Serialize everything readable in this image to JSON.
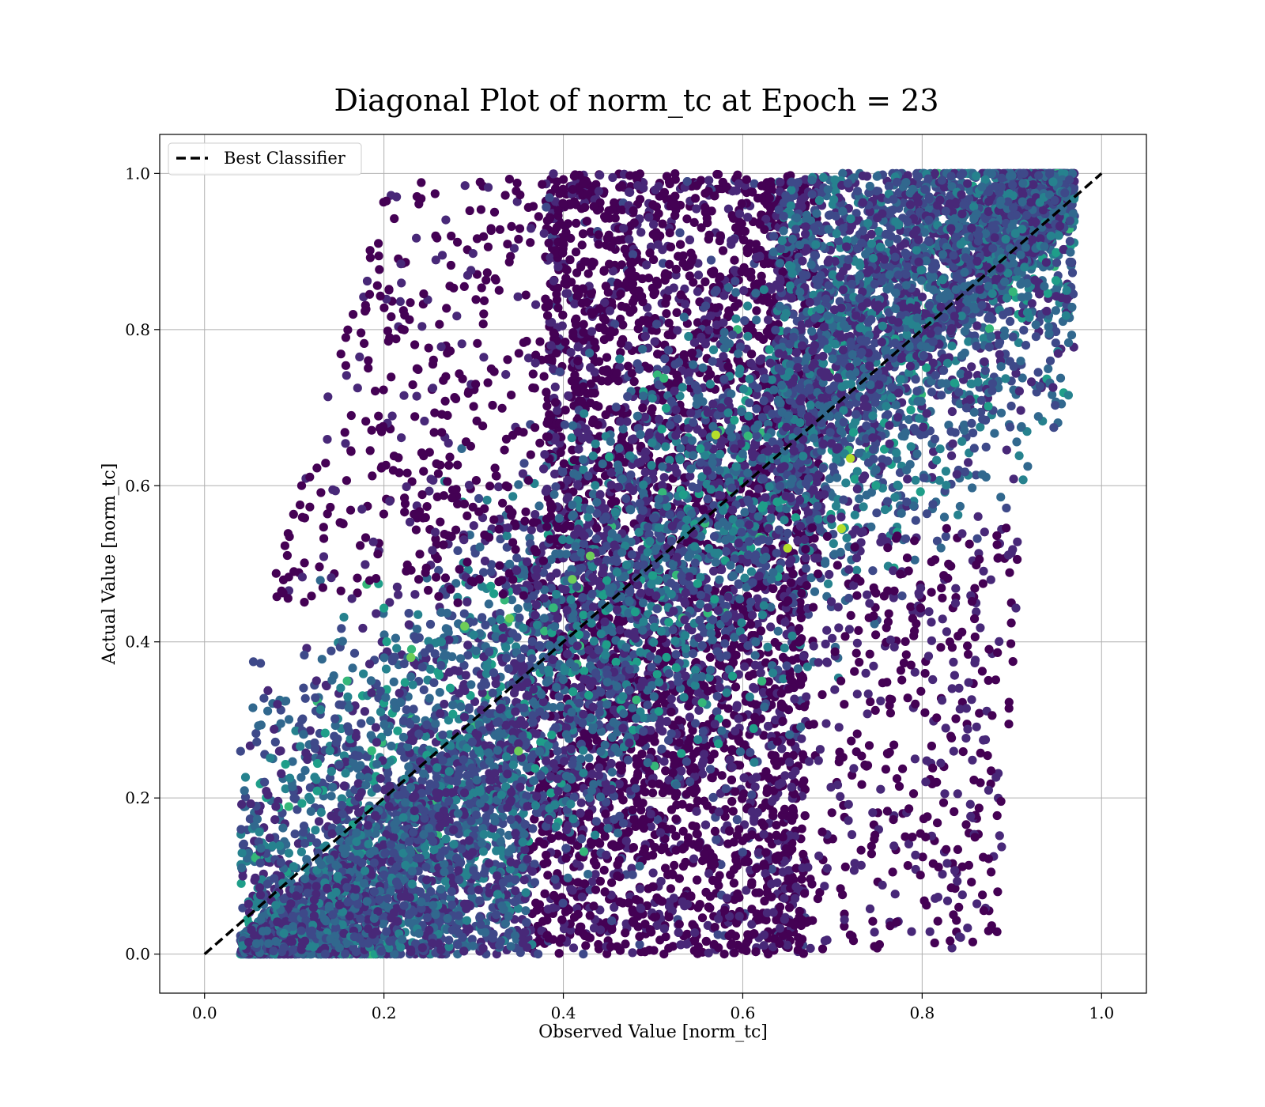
{
  "chart_data": {
    "type": "scatter",
    "title": "Diagonal Plot of norm_tc at Epoch = 23",
    "xlabel": "Observed Value [norm_tc]",
    "ylabel": "Actual Value [norm_tc]",
    "xlim": [
      -0.05,
      1.05
    ],
    "ylim": [
      -0.05,
      1.05
    ],
    "x_ticks": [
      "0.0",
      "0.2",
      "0.4",
      "0.6",
      "0.8",
      "1.0"
    ],
    "y_ticks": [
      "0.0",
      "0.2",
      "0.4",
      "0.6",
      "0.8",
      "1.0"
    ],
    "grid": true,
    "legend": {
      "placement": "top-left",
      "entries": [
        "Best Classifier"
      ]
    },
    "colormap": [
      "#440154",
      "#482878",
      "#3e4989",
      "#31688e",
      "#26828e",
      "#1f9e89",
      "#35b779",
      "#6ece58",
      "#b5de2b"
    ],
    "reference_line": {
      "name": "Best Classifier",
      "x": [
        0.0,
        1.0
      ],
      "y": [
        0.0,
        1.0
      ],
      "style": "dashed",
      "color": "#000000"
    },
    "series": [
      {
        "x": [
          0.05,
          0.1,
          0.15,
          0.2,
          0.25,
          0.3,
          0.35,
          0.4,
          0.45,
          0.5,
          0.55,
          0.6,
          0.65,
          0.7,
          0.75,
          0.8,
          0.85,
          0.9,
          0.95
        ],
        "y": [
          0.05,
          0.1,
          0.15,
          0.2,
          0.25,
          0.3,
          0.35,
          0.4,
          0.45,
          0.5,
          0.55,
          0.6,
          0.65,
          0.7,
          0.75,
          0.8,
          0.85,
          0.9,
          0.95
        ]
      }
    ]
  }
}
